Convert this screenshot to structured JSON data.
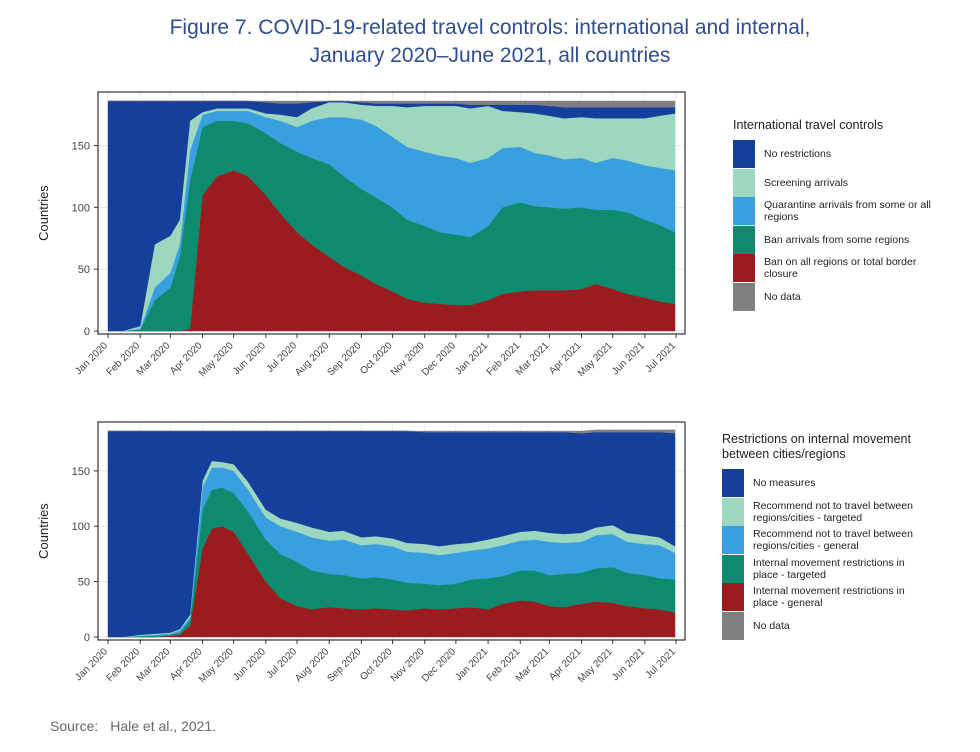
{
  "figure": {
    "title_line1": "Figure 7. COVID-19-related travel controls: international and internal,",
    "title_line2": "January 2020–June 2021, all countries",
    "source_label": "Source:",
    "source_text": "Hale et al., 2021."
  },
  "chart_data": [
    {
      "type": "area",
      "stacked": true,
      "title": "",
      "ylabel": "Countries",
      "xlabel": "",
      "ylim": [
        0,
        186
      ],
      "yticks": [
        0,
        50,
        100,
        150
      ],
      "grid": true,
      "legend_position": "right",
      "legend_title": "International travel controls",
      "x": [
        "2020-01-01",
        "2020-01-15",
        "2020-02-01",
        "2020-02-15",
        "2020-03-01",
        "2020-03-10",
        "2020-03-20",
        "2020-04-01",
        "2020-04-15",
        "2020-05-01",
        "2020-05-15",
        "2020-06-01",
        "2020-06-15",
        "2020-07-01",
        "2020-07-15",
        "2020-08-01",
        "2020-08-15",
        "2020-09-01",
        "2020-09-15",
        "2020-10-01",
        "2020-10-15",
        "2020-11-01",
        "2020-11-15",
        "2020-12-01",
        "2020-12-15",
        "2021-01-01",
        "2021-01-15",
        "2021-02-01",
        "2021-02-15",
        "2021-03-01",
        "2021-03-15",
        "2021-04-01",
        "2021-04-15",
        "2021-05-01",
        "2021-05-15",
        "2021-06-01",
        "2021-06-15",
        "2021-06-30"
      ],
      "x_ticks": [
        "Jan 2020",
        "Feb 2020",
        "Mar 2020",
        "Apr 2020",
        "May 2020",
        "Jun 2020",
        "Jul 2020",
        "Aug 2020",
        "Sep 2020",
        "Oct 2020",
        "Nov 2020",
        "Dec 2020",
        "Jan 2021",
        "Feb 2021",
        "Mar 2021",
        "Apr 2021",
        "May 2021",
        "Jun 2021",
        "Jul 2021"
      ],
      "x_tick_dates": [
        "2020-01-01",
        "2020-02-01",
        "2020-03-01",
        "2020-04-01",
        "2020-05-01",
        "2020-06-01",
        "2020-07-01",
        "2020-08-01",
        "2020-09-01",
        "2020-10-01",
        "2020-11-01",
        "2020-12-01",
        "2021-01-01",
        "2021-02-01",
        "2021-03-01",
        "2021-04-01",
        "2021-05-01",
        "2021-06-01",
        "2021-07-01"
      ],
      "series": [
        {
          "name": "Ban on all regions or total border closure",
          "color": "#9b1c1f",
          "values": [
            0,
            0,
            0,
            0,
            0,
            0,
            2,
            110,
            125,
            130,
            125,
            110,
            95,
            80,
            70,
            60,
            52,
            45,
            38,
            32,
            26,
            23,
            22,
            21,
            21,
            25,
            30,
            32,
            33,
            33,
            33,
            34,
            38,
            34,
            30,
            27,
            24,
            22
          ]
        },
        {
          "name": "Ban arrivals from some regions",
          "color": "#0e8a6e",
          "values": [
            0,
            0,
            1,
            25,
            35,
            60,
            120,
            55,
            45,
            40,
            43,
            50,
            57,
            65,
            70,
            75,
            73,
            70,
            70,
            68,
            64,
            62,
            58,
            57,
            55,
            60,
            70,
            72,
            68,
            67,
            66,
            66,
            60,
            64,
            66,
            63,
            62,
            58
          ]
        },
        {
          "name": "Quarantine arrivals from some or all regions",
          "color": "#3a9fdf",
          "values": [
            0,
            0,
            1,
            10,
            12,
            10,
            24,
            10,
            8,
            8,
            10,
            13,
            18,
            20,
            30,
            38,
            48,
            56,
            58,
            57,
            59,
            60,
            62,
            62,
            60,
            55,
            48,
            45,
            43,
            42,
            40,
            40,
            38,
            42,
            42,
            44,
            46,
            50
          ]
        },
        {
          "name": "Screening arrivals",
          "color": "#9dd7c0",
          "values": [
            0,
            0,
            2,
            35,
            30,
            20,
            24,
            2,
            2,
            2,
            2,
            3,
            5,
            8,
            10,
            12,
            12,
            12,
            16,
            25,
            32,
            37,
            40,
            42,
            44,
            42,
            30,
            28,
            32,
            32,
            33,
            33,
            36,
            32,
            34,
            38,
            42,
            46
          ]
        },
        {
          "name": "No restrictions",
          "color": "#143f9a",
          "values": [
            186,
            186,
            182,
            116,
            109,
            96,
            16,
            9,
            6,
            6,
            6,
            9,
            9,
            11,
            5,
            1,
            1,
            2,
            2,
            2,
            3,
            2,
            2,
            2,
            3,
            1,
            5,
            6,
            7,
            8,
            9,
            8,
            9,
            9,
            9,
            9,
            7,
            5
          ]
        },
        {
          "name": "No data",
          "color": "#7f7f7f",
          "values": [
            0,
            0,
            0,
            0,
            0,
            0,
            0,
            0,
            0,
            0,
            0,
            1,
            2,
            2,
            1,
            0,
            0,
            1,
            2,
            2,
            2,
            2,
            2,
            2,
            3,
            3,
            3,
            3,
            3,
            4,
            5,
            5,
            5,
            5,
            5,
            5,
            5,
            5
          ]
        }
      ]
    },
    {
      "type": "area",
      "stacked": true,
      "title": "",
      "ylabel": "Countries",
      "xlabel": "",
      "ylim": [
        0,
        186
      ],
      "yticks": [
        0,
        50,
        100,
        150
      ],
      "grid": true,
      "legend_position": "right",
      "legend_title": "Restrictions on internal movement between cities/regions",
      "x": [
        "2020-01-01",
        "2020-01-15",
        "2020-02-01",
        "2020-02-15",
        "2020-03-01",
        "2020-03-10",
        "2020-03-20",
        "2020-04-01",
        "2020-04-10",
        "2020-04-20",
        "2020-05-01",
        "2020-05-15",
        "2020-06-01",
        "2020-06-15",
        "2020-07-01",
        "2020-07-15",
        "2020-08-01",
        "2020-08-15",
        "2020-09-01",
        "2020-09-15",
        "2020-10-01",
        "2020-10-15",
        "2020-11-01",
        "2020-11-15",
        "2020-12-01",
        "2020-12-15",
        "2021-01-01",
        "2021-01-15",
        "2021-02-01",
        "2021-02-15",
        "2021-03-01",
        "2021-03-15",
        "2021-04-01",
        "2021-04-15",
        "2021-05-01",
        "2021-05-15",
        "2021-06-01",
        "2021-06-15",
        "2021-06-30"
      ],
      "x_ticks": [
        "Jan 2020",
        "Feb 2020",
        "Mar 2020",
        "Apr 2020",
        "May 2020",
        "Jun 2020",
        "Jul 2020",
        "Aug 2020",
        "Sep 2020",
        "Oct 2020",
        "Nov 2020",
        "Dec 2020",
        "Jan 2021",
        "Feb 2021",
        "Mar 2021",
        "Apr 2021",
        "May 2021",
        "Jun 2021",
        "Jul 2021"
      ],
      "x_tick_dates": [
        "2020-01-01",
        "2020-02-01",
        "2020-03-01",
        "2020-04-01",
        "2020-05-01",
        "2020-06-01",
        "2020-07-01",
        "2020-08-01",
        "2020-09-01",
        "2020-10-01",
        "2020-11-01",
        "2020-12-01",
        "2021-01-01",
        "2021-02-01",
        "2021-03-01",
        "2021-04-01",
        "2021-05-01",
        "2021-06-01",
        "2021-07-01"
      ],
      "series": [
        {
          "name": "Internal movement restrictions in place - general",
          "color": "#9b1c1f",
          "values": [
            0,
            0,
            0,
            0,
            1,
            2,
            10,
            80,
            98,
            100,
            95,
            75,
            50,
            35,
            28,
            25,
            27,
            26,
            25,
            26,
            25,
            24,
            26,
            25,
            26,
            27,
            25,
            30,
            33,
            32,
            28,
            27,
            30,
            32,
            31,
            28,
            26,
            25,
            22
          ]
        },
        {
          "name": "Internal movement restrictions in place - targeted",
          "color": "#0e8a6e",
          "values": [
            0,
            0,
            1,
            1,
            1,
            2,
            5,
            35,
            35,
            35,
            35,
            38,
            38,
            40,
            40,
            35,
            30,
            30,
            28,
            28,
            27,
            25,
            22,
            22,
            22,
            25,
            28,
            25,
            27,
            28,
            28,
            30,
            28,
            30,
            32,
            30,
            30,
            28,
            30
          ]
        },
        {
          "name": "Recommend not to travel between regions/cities - general",
          "color": "#3a9fdf",
          "values": [
            0,
            0,
            0,
            1,
            1,
            2,
            3,
            20,
            20,
            18,
            20,
            20,
            20,
            25,
            27,
            30,
            30,
            32,
            30,
            30,
            30,
            28,
            28,
            27,
            28,
            26,
            27,
            28,
            27,
            28,
            30,
            28,
            28,
            30,
            30,
            28,
            28,
            30,
            24
          ]
        },
        {
          "name": "Recommend not to travel between regions/cities - targeted",
          "color": "#9dd7c0",
          "values": [
            0,
            0,
            1,
            1,
            1,
            1,
            2,
            6,
            6,
            5,
            6,
            7,
            7,
            7,
            8,
            9,
            8,
            8,
            7,
            7,
            7,
            8,
            8,
            8,
            8,
            7,
            8,
            8,
            8,
            8,
            8,
            8,
            8,
            7,
            8,
            8,
            8,
            7,
            6
          ]
        },
        {
          "name": "No measures",
          "color": "#143f9a",
          "values": [
            186,
            186,
            184,
            183,
            182,
            179,
            166,
            45,
            27,
            28,
            30,
            46,
            71,
            79,
            83,
            87,
            91,
            90,
            96,
            95,
            97,
            101,
            101,
            103,
            101,
            100,
            97,
            94,
            90,
            89,
            91,
            92,
            90,
            86,
            84,
            91,
            93,
            95,
            102
          ]
        },
        {
          "name": "No data",
          "color": "#7f7f7f",
          "values": [
            0,
            0,
            0,
            0,
            0,
            0,
            0,
            0,
            0,
            0,
            0,
            0,
            0,
            0,
            0,
            0,
            0,
            0,
            0,
            0,
            0,
            0,
            1,
            1,
            1,
            1,
            1,
            1,
            1,
            1,
            1,
            1,
            2,
            2,
            2,
            2,
            2,
            2,
            3
          ]
        }
      ]
    }
  ]
}
